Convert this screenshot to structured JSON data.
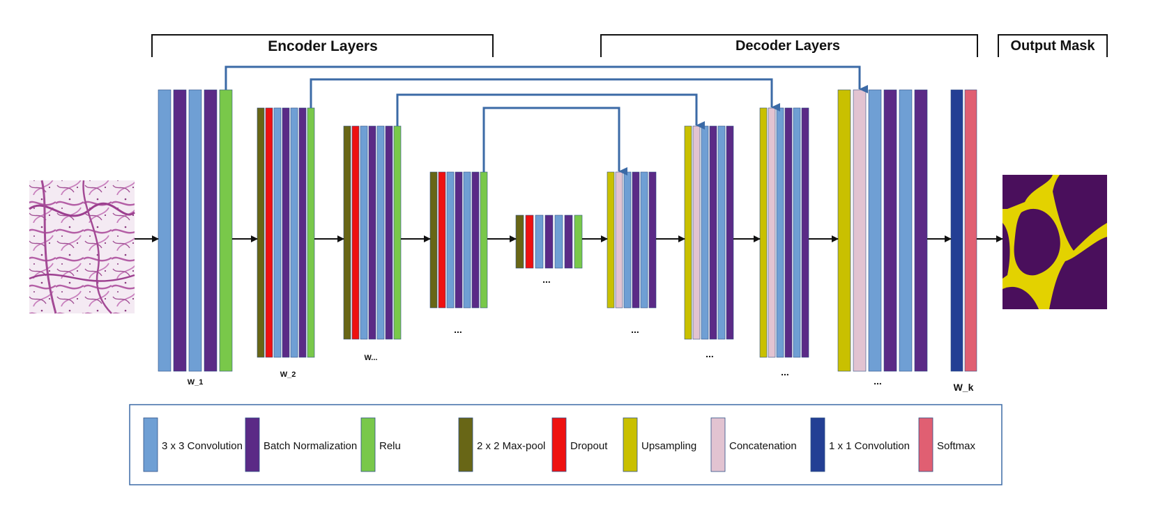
{
  "colors": {
    "conv3": "#6f9fd4",
    "bn": "#5b2a86",
    "relu": "#79c84a",
    "maxpool": "#686616",
    "dropout": "#ee1111",
    "upsample": "#c9c000",
    "concat": "#e2c3d1",
    "conv1": "#233f94",
    "softmax": "#e05f72",
    "skip": "#3b6aa6",
    "arrow": "#111111",
    "bracket": "#111111",
    "legend_border": "#3b6aa6"
  },
  "headers": {
    "encoder": "Encoder Layers",
    "decoder": "Decoder Layers",
    "output": "Output Mask"
  },
  "labels": {
    "w1": "W_1",
    "w2": "W_2",
    "w3": "W...",
    "wk": "W_k",
    "dots": "..."
  },
  "images": {
    "input": "histology-input-image",
    "output": "output-mask-image"
  },
  "legend": [
    {
      "key": "conv3",
      "label": "3 x 3 Convolution"
    },
    {
      "key": "bn",
      "label": "Batch Normalization"
    },
    {
      "key": "relu",
      "label": "Relu"
    },
    {
      "key": "maxpool",
      "label": "2 x 2 Max-pool"
    },
    {
      "key": "dropout",
      "label": "Dropout"
    },
    {
      "key": "upsample",
      "label": "Upsampling"
    },
    {
      "key": "concat",
      "label": "Concatenation"
    },
    {
      "key": "conv1",
      "label": "1 x 1 Convolution"
    },
    {
      "key": "softmax",
      "label": "Softmax"
    }
  ],
  "blocks": [
    {
      "id": "enc1",
      "layers": [
        "conv3",
        "bn",
        "conv3",
        "bn",
        "relu"
      ]
    },
    {
      "id": "enc2",
      "layers": [
        "maxpool",
        "dropout",
        "conv3",
        "bn",
        "conv3",
        "bn",
        "relu"
      ]
    },
    {
      "id": "enc3",
      "layers": [
        "maxpool",
        "dropout",
        "conv3",
        "bn",
        "conv3",
        "bn",
        "relu"
      ]
    },
    {
      "id": "enc4",
      "layers": [
        "maxpool",
        "dropout",
        "conv3",
        "bn",
        "conv3",
        "bn",
        "relu"
      ]
    },
    {
      "id": "bottleneck",
      "layers": [
        "maxpool",
        "dropout",
        "conv3",
        "bn",
        "conv3",
        "bn",
        "relu"
      ]
    },
    {
      "id": "dec1",
      "layers": [
        "upsample",
        "concat",
        "conv3",
        "bn",
        "conv3",
        "bn"
      ]
    },
    {
      "id": "dec2",
      "layers": [
        "upsample",
        "concat",
        "conv3",
        "bn",
        "conv3",
        "bn"
      ]
    },
    {
      "id": "dec3",
      "layers": [
        "upsample",
        "concat",
        "conv3",
        "bn",
        "conv3",
        "bn"
      ]
    },
    {
      "id": "dec4",
      "layers": [
        "upsample",
        "concat",
        "conv3",
        "bn",
        "conv3",
        "bn"
      ]
    },
    {
      "id": "final",
      "layers": [
        "conv1",
        "softmax"
      ]
    }
  ]
}
